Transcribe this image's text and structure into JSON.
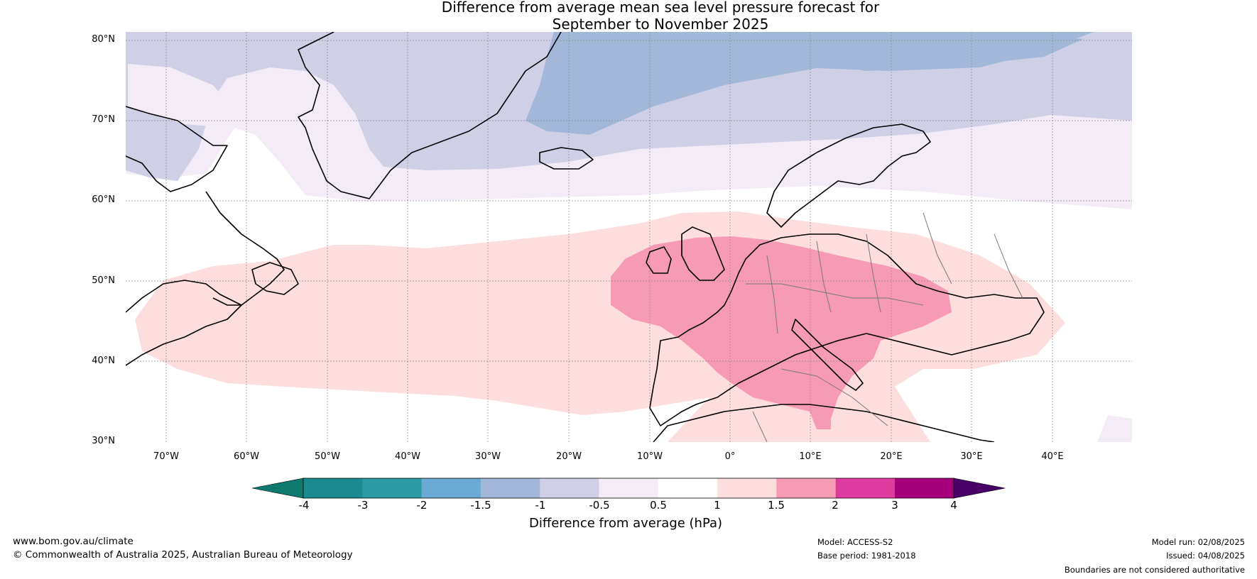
{
  "title_line1": "Difference from average mean sea level pressure forecast for",
  "title_line2": "September to November 2025",
  "lat_labels": [
    "80°N",
    "70°N",
    "60°N",
    "50°N",
    "40°N",
    "30°N"
  ],
  "lon_labels": [
    "70°W",
    "60°W",
    "50°W",
    "40°W",
    "30°W",
    "20°W",
    "10°W",
    "0°",
    "10°E",
    "20°E",
    "30°E",
    "40°E"
  ],
  "colorbar": {
    "title": "Difference from average (hPa)",
    "tick_labels": [
      "-4",
      "-3",
      "-2",
      "-1.5",
      "-1",
      "-0.5",
      "0.5",
      "1",
      "1.5",
      "2",
      "3",
      "4"
    ],
    "colors": [
      "#1b8c8e",
      "#2a9aa3",
      "#6aaad4",
      "#a3b8d9",
      "#cfd0e6",
      "#f3ebf5",
      "#ffffff",
      "#fddddd",
      "#f69ab5",
      "#df3a9e",
      "#a8007c",
      "#7a0079",
      "#480068"
    ],
    "low_arrow_color": "#0e7a6d"
  },
  "footer": {
    "website": "www.bom.gov.au/climate",
    "copyright": "© Commonwealth of Australia 2025, Australian Bureau of Meteorology",
    "model": "Model: ACCESS-S2",
    "base_period": "Base period: 1981-2018",
    "model_run": "Model run: 02/08/2025",
    "issued": "Issued: 04/08/2025",
    "disclaimer": "Boundaries are not considered authoritative"
  }
}
